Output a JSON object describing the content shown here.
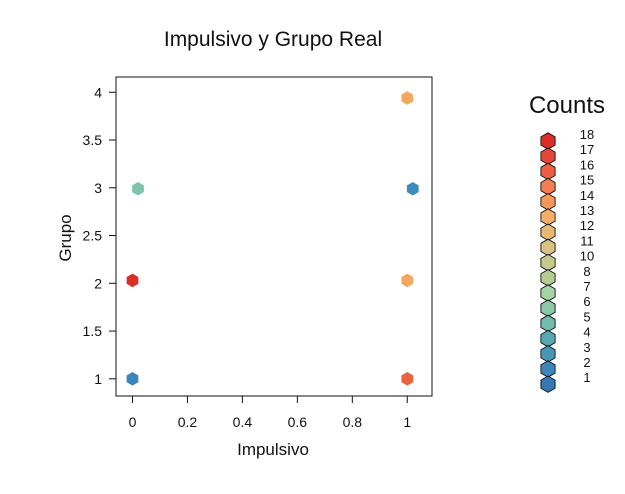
{
  "chart_data": {
    "type": "hexbin",
    "title": "Impulsivo y Grupo Real",
    "xlabel": "Impulsivo",
    "ylabel": "Grupo",
    "xlim": [
      -0.06,
      1.09
    ],
    "ylim": [
      0.82,
      4.16
    ],
    "xticks": [
      0,
      0.2,
      0.4,
      0.6,
      0.8,
      1
    ],
    "xtick_labels": [
      "0",
      "0.2",
      "0.4",
      "0.6",
      "0.8",
      "1"
    ],
    "yticks": [
      1,
      1.5,
      2,
      2.5,
      3,
      3.5,
      4
    ],
    "ytick_labels": [
      "1",
      "1.5",
      "2",
      "2.5",
      "3",
      "3.5",
      "4"
    ],
    "grid": false,
    "legend_title": "Counts",
    "legend_position": "right",
    "legend": [
      {
        "label": "18",
        "color": "#dc2d27"
      },
      {
        "label": "17",
        "color": "#e4463a"
      },
      {
        "label": "16",
        "color": "#ec5e45"
      },
      {
        "label": "15",
        "color": "#f27e51"
      },
      {
        "label": "14",
        "color": "#f5975a"
      },
      {
        "label": "13",
        "color": "#f4ae68"
      },
      {
        "label": "12",
        "color": "#e7b874"
      },
      {
        "label": "11",
        "color": "#d9c283"
      },
      {
        "label": "10",
        "color": "#c7c88c"
      },
      {
        "label": "8",
        "color": "#b6cc95"
      },
      {
        "label": "7",
        "color": "#a4d4a4"
      },
      {
        "label": "6",
        "color": "#8ac8a6"
      },
      {
        "label": "5",
        "color": "#71bcac"
      },
      {
        "label": "4",
        "color": "#56a9b2"
      },
      {
        "label": "3",
        "color": "#4796b7"
      },
      {
        "label": "2",
        "color": "#3c86bc"
      },
      {
        "label": "1",
        "color": "#3678b3"
      }
    ],
    "points": [
      {
        "x": 0.0,
        "y": 1.0,
        "count": 3,
        "color": "#3c86bc"
      },
      {
        "x": 0.0,
        "y": 2.03,
        "count": 18,
        "color": "#dc2d27"
      },
      {
        "x": 0.02,
        "y": 2.99,
        "count": 6,
        "color": "#7cc3ad"
      },
      {
        "x": 1.0,
        "y": 1.0,
        "count": 16,
        "color": "#e9643f"
      },
      {
        "x": 1.0,
        "y": 2.03,
        "count": 13,
        "color": "#f4a85e"
      },
      {
        "x": 1.02,
        "y": 2.99,
        "count": 3,
        "color": "#3c8cba"
      },
      {
        "x": 1.0,
        "y": 3.94,
        "count": 13,
        "color": "#f4a85e"
      }
    ]
  }
}
